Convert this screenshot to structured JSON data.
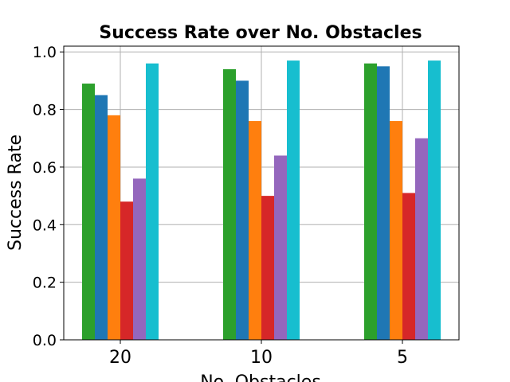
{
  "chart_data": {
    "type": "bar",
    "title": "Success Rate over No. Obstacles",
    "xlabel": "No. Obstacles",
    "ylabel": "Success Rate",
    "categories": [
      "20",
      "10",
      "5"
    ],
    "ylim": [
      0,
      1.02
    ],
    "yticks": [
      "0.0",
      "0.2",
      "0.4",
      "0.6",
      "0.8",
      "1.0"
    ],
    "grid": true,
    "series": [
      {
        "color": "#2ca02c",
        "values": [
          0.89,
          0.94,
          0.96
        ]
      },
      {
        "color": "#1f77b4",
        "values": [
          0.85,
          0.9,
          0.95
        ]
      },
      {
        "color": "#ff7f0e",
        "values": [
          0.78,
          0.76,
          0.76
        ]
      },
      {
        "color": "#d62728",
        "values": [
          0.48,
          0.5,
          0.51
        ]
      },
      {
        "color": "#9467bd",
        "values": [
          0.56,
          0.64,
          0.7
        ]
      },
      {
        "color": "#17becf",
        "values": [
          0.96,
          0.97,
          0.97
        ]
      }
    ]
  }
}
